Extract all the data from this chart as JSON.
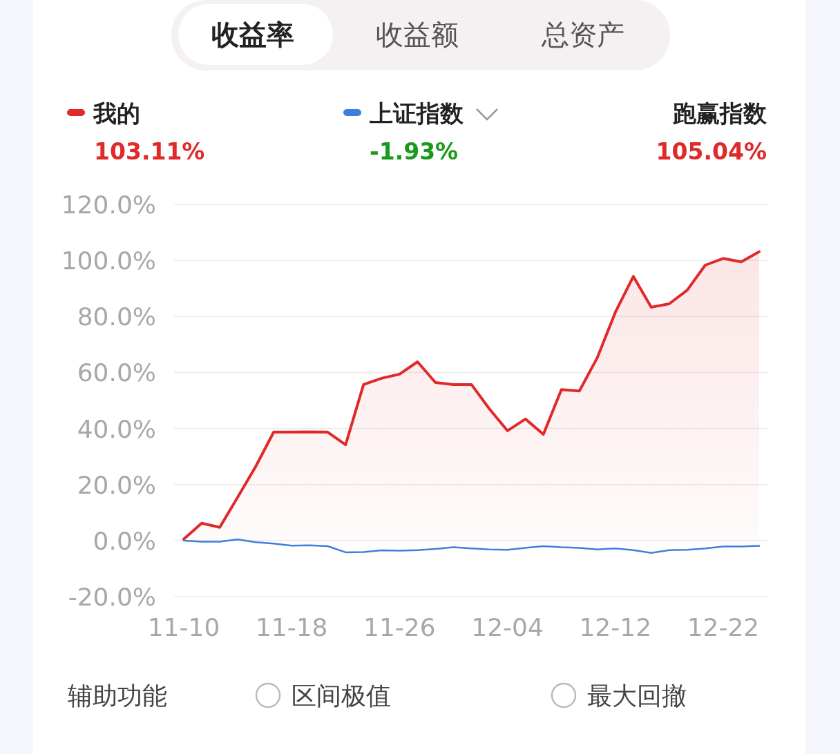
{
  "chart_data": {
    "type": "line",
    "categories": [
      "11-10",
      null,
      null,
      null,
      null,
      null,
      "11-18",
      null,
      null,
      null,
      null,
      null,
      "11-26",
      null,
      null,
      null,
      null,
      null,
      "12-04",
      null,
      null,
      null,
      null,
      null,
      "12-12",
      null,
      null,
      null,
      null,
      null,
      "12-22",
      null,
      null
    ],
    "series": [
      {
        "name": "我的",
        "type": "area",
        "color": "#e02a2a",
        "values": [
          0.5,
          6.2,
          4.7,
          15.5,
          26.4,
          38.7,
          38.7,
          38.8,
          38.7,
          34.2,
          55.7,
          57.9,
          59.4,
          63.8,
          56.4,
          55.7,
          55.7,
          47.0,
          39.2,
          43.4,
          37.9,
          53.9,
          53.4,
          65.3,
          81.5,
          94.3,
          83.3,
          84.5,
          89.4,
          98.3,
          100.7,
          99.5,
          103.1
        ]
      },
      {
        "name": "上证指数",
        "color": "#3f7fdc",
        "values": [
          0,
          -0.4,
          -0.4,
          0.4,
          -0.6,
          -1.1,
          -1.8,
          -1.7,
          -2.0,
          -4.2,
          -4.1,
          -3.5,
          -3.6,
          -3.4,
          -3.0,
          -2.4,
          -2.8,
          -3.2,
          -3.3,
          -2.6,
          -2.0,
          -2.4,
          -2.6,
          -3.2,
          -2.8,
          -3.4,
          -4.4,
          -3.4,
          -3.3,
          -2.8,
          -2.1,
          -2.1,
          -1.9
        ]
      }
    ],
    "ylim": [
      -20,
      120
    ],
    "yticks": [
      {
        "value": -20,
        "label": "-20.0%"
      },
      {
        "value": 0,
        "label": "0.0%"
      },
      {
        "value": 20,
        "label": "20.0%"
      },
      {
        "value": 40,
        "label": "40.0%"
      },
      {
        "value": 60,
        "label": "60.0%"
      },
      {
        "value": 80,
        "label": "80.0%"
      },
      {
        "value": 100,
        "label": "100.0%"
      },
      {
        "value": 120,
        "label": "120.0%"
      }
    ],
    "grid": "y",
    "legend": "top",
    "marker": "none",
    "annotations": [
      "收益率",
      "收益额",
      "总资产",
      "103.11%",
      "-1.93%",
      "跑赢指数",
      "105.04%",
      "辅助功能",
      "区间极值",
      "最大回撤"
    ]
  }
}
